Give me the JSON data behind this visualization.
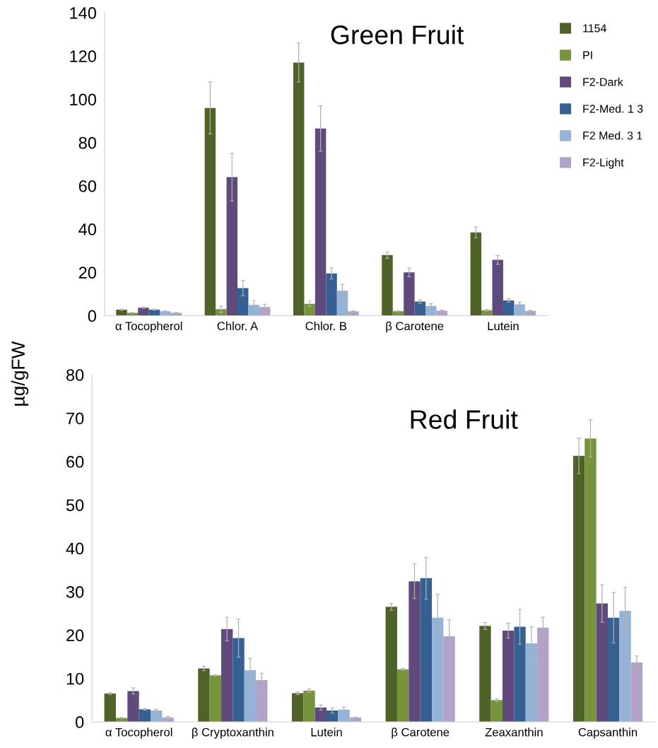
{
  "chart_data": [
    {
      "type": "bar",
      "title": "Green Fruit",
      "ylabel": "µg/gFW",
      "categories": [
        "α Tocopherol",
        "Chlor. A",
        "Chlor. B",
        "β Carotene",
        "Lutein"
      ],
      "ylim": [
        0,
        140
      ],
      "yticks": [
        0,
        20,
        40,
        60,
        80,
        100,
        120,
        140
      ],
      "grid": false,
      "legend": "right",
      "series": [
        {
          "name": "1154",
          "color": "#4f6228",
          "values": [
            2.8,
            96,
            117,
            28,
            38.5
          ],
          "errors": [
            0.3,
            12,
            9,
            1.5,
            2.5
          ]
        },
        {
          "name": "PI",
          "color": "#77933c",
          "values": [
            1.3,
            3,
            5.5,
            2,
            2.5
          ],
          "errors": [
            0.2,
            1.5,
            1.2,
            0.3,
            0.3
          ]
        },
        {
          "name": "F2-Dark",
          "color": "#604a7b",
          "values": [
            3.7,
            64,
            86.5,
            20,
            25.8
          ],
          "errors": [
            0.3,
            11,
            10.5,
            2,
            2
          ]
        },
        {
          "name": "F2-Med. 1 3",
          "color": "#366092",
          "values": [
            2.8,
            12.7,
            19.5,
            6.5,
            7
          ],
          "errors": [
            0.3,
            3.5,
            2.5,
            0.8,
            0.8
          ]
        },
        {
          "name": "F2 Med. 3 1",
          "color": "#95b3d7",
          "values": [
            2,
            5,
            11.5,
            4.5,
            5.2
          ],
          "errors": [
            0.2,
            2,
            3,
            1,
            1
          ]
        },
        {
          "name": "F2-Light",
          "color": "#b3a2c7",
          "values": [
            1.3,
            4,
            2,
            2.3,
            2.2
          ],
          "errors": [
            0.2,
            1.3,
            0.3,
            0.3,
            0.3
          ]
        }
      ]
    },
    {
      "type": "bar",
      "title": "Red Fruit",
      "categories": [
        "α Tocopherol",
        "β Cryptoxanthin",
        "Lutein",
        "β Carotene",
        "Zeaxanthin",
        "Capsanthin"
      ],
      "ylim": [
        0,
        80
      ],
      "yticks": [
        0,
        10,
        20,
        30,
        40,
        50,
        60,
        70,
        80
      ],
      "grid": false,
      "series": [
        {
          "color": "#4f6228",
          "values": [
            6.5,
            12.3,
            6.6,
            26.5,
            22.1,
            61.3
          ],
          "errors": [
            0.2,
            0.5,
            0.3,
            0.8,
            0.8,
            4.1
          ]
        },
        {
          "color": "#77933c",
          "values": [
            0.9,
            10.7,
            7.2,
            12.1,
            5,
            65.3
          ],
          "errors": [
            0.1,
            0.1,
            0.4,
            0.2,
            0.3,
            4.3
          ]
        },
        {
          "color": "#604a7b",
          "values": [
            7.1,
            21.4,
            3.3,
            32.4,
            21,
            27.3
          ],
          "errors": [
            0.7,
            2.7,
            0.6,
            4,
            1.7,
            4.3
          ]
        },
        {
          "color": "#366092",
          "values": [
            2.9,
            19.3,
            2.6,
            33.1,
            21.9,
            24
          ],
          "errors": [
            0.2,
            4.4,
            0.6,
            4.8,
            4,
            5.8
          ]
        },
        {
          "color": "#95b3d7",
          "values": [
            2.6,
            11.9,
            2.8,
            24,
            18.1,
            25.6
          ],
          "errors": [
            0.3,
            2.7,
            0.6,
            5.4,
            3.8,
            5.4
          ]
        },
        {
          "color": "#b3a2c7",
          "values": [
            1.0,
            9.6,
            1.0,
            19.7,
            21.7,
            13.7
          ],
          "errors": [
            0.2,
            1.6,
            0.1,
            3.8,
            2.4,
            1.5
          ]
        }
      ]
    }
  ]
}
